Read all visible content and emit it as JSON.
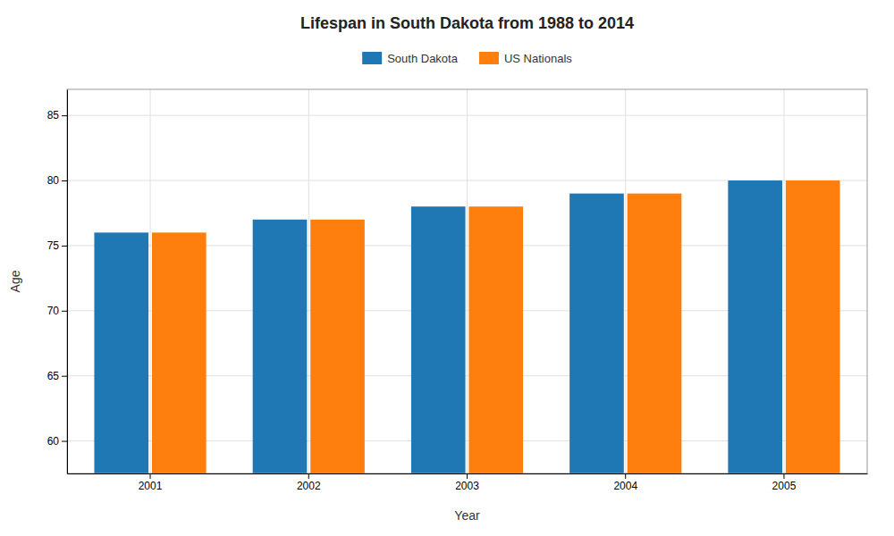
{
  "chart_data": {
    "type": "bar",
    "title": "Lifespan in South Dakota from 1988 to 2014",
    "xlabel": "Year",
    "ylabel": "Age",
    "categories": [
      "2001",
      "2002",
      "2003",
      "2004",
      "2005"
    ],
    "series": [
      {
        "name": "South Dakota",
        "values": [
          76,
          77,
          78,
          79,
          80
        ]
      },
      {
        "name": "US Nationals",
        "values": [
          76,
          77,
          78,
          79,
          80
        ]
      }
    ],
    "ylim": [
      57.5,
      87
    ],
    "yticks": [
      60,
      65,
      70,
      75,
      80,
      85
    ],
    "grid": true,
    "legend": "top"
  }
}
